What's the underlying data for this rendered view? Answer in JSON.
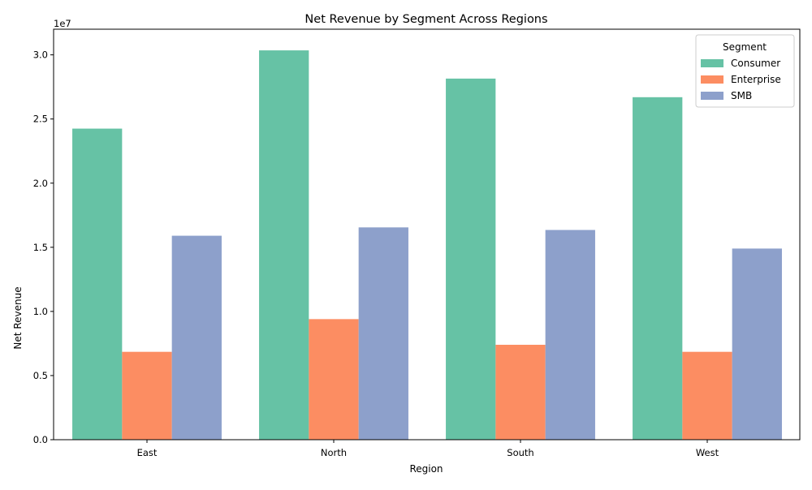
{
  "chart_data": {
    "type": "bar",
    "title": "Net Revenue by Segment Across Regions",
    "xlabel": "Region",
    "ylabel": "Net Revenue",
    "offset_label": "1e7",
    "categories": [
      "East",
      "North",
      "South",
      "West"
    ],
    "ylim": [
      0,
      32000000
    ],
    "yticks": [
      0,
      5000000,
      10000000,
      15000000,
      20000000,
      25000000,
      30000000
    ],
    "ytick_labels": [
      "0.0",
      "0.5",
      "1.0",
      "1.5",
      "2.0",
      "2.5",
      "3.0"
    ],
    "grid": false,
    "legend": {
      "title": "Segment",
      "placement": "top-right"
    },
    "series": [
      {
        "name": "Consumer",
        "color": "#66c2a5",
        "values": [
          24250000,
          30350000,
          28150000,
          26700000
        ]
      },
      {
        "name": "Enterprise",
        "color": "#fc8d62",
        "values": [
          6850000,
          9400000,
          7400000,
          6850000
        ]
      },
      {
        "name": "SMB",
        "color": "#8da0cb",
        "values": [
          15900000,
          16550000,
          16350000,
          14900000
        ]
      }
    ]
  }
}
